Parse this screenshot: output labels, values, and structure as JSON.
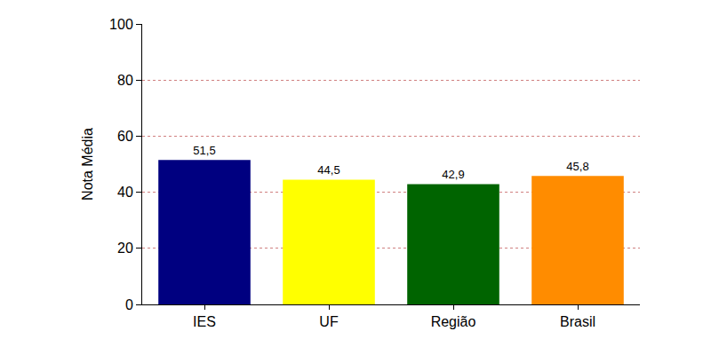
{
  "chart_data": {
    "type": "bar",
    "y_label": "Nota Média",
    "categories": [
      "IES",
      "UF",
      "Região",
      "Brasil"
    ],
    "values": [
      51.5,
      44.5,
      42.9,
      45.8
    ],
    "value_labels": [
      "51,5",
      "44,5",
      "42,9",
      "45,8"
    ],
    "colors": [
      "#000080",
      "#ffff00",
      "#006400",
      "#ff8c00"
    ],
    "ylim": [
      0,
      100
    ],
    "yticks": [
      0,
      20,
      40,
      60,
      80,
      100
    ],
    "grid": true,
    "data_labels": true
  }
}
